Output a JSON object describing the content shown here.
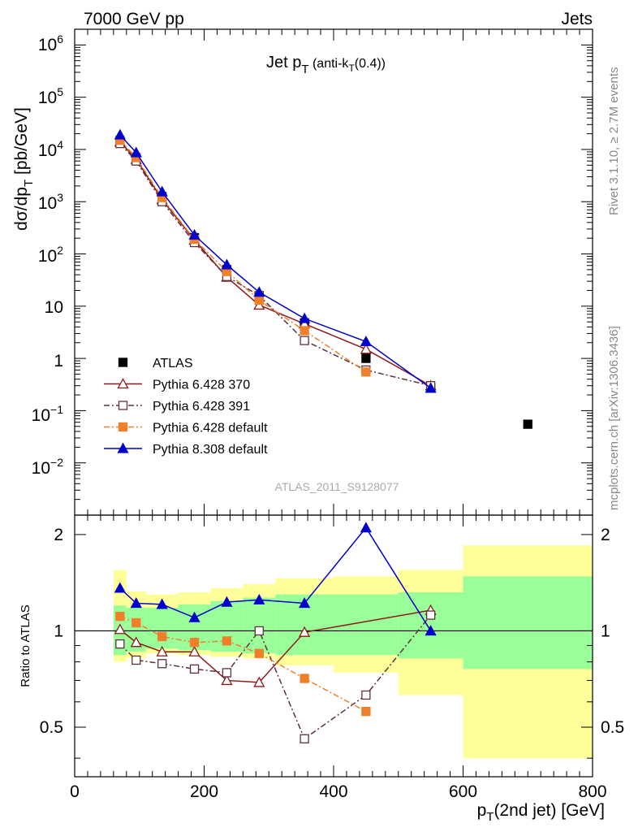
{
  "header": {
    "left": "7000 GeV pp",
    "right": "Jets"
  },
  "side_labels": {
    "rivet": "Rivet 3.1.10, ≥ 2.7M events",
    "mcplots": "mcplots.cern.ch [arXiv:1306.3436]"
  },
  "watermark": "ATLAS_2011_S9128077",
  "chart_data": [
    {
      "type": "scatter",
      "title_parts": {
        "main": "Jet p",
        "sub": "T",
        "rest": " (anti-k",
        "sub2": "T",
        "rest2": "(0.4))"
      },
      "ylabel_parts": {
        "main": "dσ/dp",
        "sub": "T",
        "rest": " [pb/GeV]"
      },
      "xlim": [
        0,
        800
      ],
      "ylim": [
        0.001,
        2000000
      ],
      "yscale": "log",
      "ytick_labels": {
        "e6": {
          "base": "10",
          "exp": "6"
        },
        "e5": {
          "base": "10",
          "exp": "5"
        },
        "e4": {
          "base": "10",
          "exp": "4"
        },
        "e3": {
          "base": "10",
          "exp": "3"
        },
        "e2": {
          "base": "10",
          "exp": "2"
        },
        "e1": "10",
        "e0": "1",
        "em1": {
          "base": "10",
          "exp": "−1"
        },
        "em2": {
          "base": "10",
          "exp": "−2"
        }
      },
      "legend_position": "lower-left",
      "series": [
        {
          "name": "ATLAS",
          "color": "#000000",
          "marker": "filled-square",
          "x": [
            70,
            95,
            135,
            185,
            235,
            285,
            355,
            450,
            550,
            700
          ],
          "y": [
            14000,
            7000,
            1250,
            205,
            50,
            15,
            4.8,
            1.0,
            0.27,
            0.055
          ]
        },
        {
          "name": "Pythia 6.428 370",
          "color": "#8b1a1a",
          "marker": "open-triangle",
          "line": "solid",
          "x": [
            70,
            95,
            135,
            185,
            235,
            285,
            355,
            450,
            550
          ],
          "y": [
            14000,
            6500,
            1100,
            185,
            36,
            10.5,
            4.6,
            1.5,
            0.3
          ]
        },
        {
          "name": "Pythia 6.428 391",
          "color": "#603040",
          "marker": "open-square",
          "line": "dashdot",
          "x": [
            70,
            95,
            135,
            185,
            235,
            285,
            355,
            450,
            550
          ],
          "y": [
            13000,
            6000,
            1000,
            165,
            37,
            16,
            2.2,
            0.6,
            0.3
          ]
        },
        {
          "name": "Pythia 6.428 default",
          "color": "#f07f2a",
          "marker": "filled-square",
          "line": "dashdot",
          "x": [
            70,
            95,
            135,
            185,
            235,
            285,
            355,
            450
          ],
          "y": [
            15000,
            7000,
            1200,
            190,
            46,
            13,
            3.4,
            0.55
          ]
        },
        {
          "name": "Pythia 8.308 default",
          "color": "#0000cc",
          "marker": "filled-triangle",
          "line": "solid",
          "x": [
            70,
            95,
            135,
            185,
            235,
            285,
            355,
            450,
            550
          ],
          "y": [
            19000,
            8700,
            1550,
            230,
            62,
            18.5,
            5.8,
            2.1,
            0.27
          ]
        }
      ]
    },
    {
      "type": "scatter",
      "ylabel": "Ratio to ATLAS",
      "xlabel_parts": {
        "main": "p",
        "sub": "T",
        "rest": "(2nd jet) [GeV]"
      },
      "xlim": [
        0,
        800
      ],
      "ylim": [
        0.35,
        2.3
      ],
      "yscale": "log",
      "xticks": [
        0,
        200,
        400,
        600,
        800
      ],
      "xtick_labels": [
        "0",
        "200",
        "400",
        "600",
        "800"
      ],
      "yticks": [
        0.5,
        1,
        2
      ],
      "ytick_labels": [
        "0.5",
        "1",
        "2"
      ],
      "reference_line": 1,
      "uncertainty_bins": {
        "edges": [
          60,
          80,
          110,
          160,
          210,
          260,
          310,
          400,
          500,
          600,
          800
        ],
        "stat_low": [
          0.84,
          0.86,
          0.88,
          0.87,
          0.86,
          0.85,
          0.84,
          0.84,
          0.82,
          0.76
        ],
        "stat_high": [
          1.2,
          1.18,
          1.18,
          1.21,
          1.24,
          1.27,
          1.3,
          1.3,
          1.32,
          1.48
        ],
        "total_low": [
          0.8,
          0.82,
          0.85,
          0.84,
          0.83,
          0.82,
          0.78,
          0.74,
          0.63,
          0.4
        ],
        "total_high": [
          1.55,
          1.33,
          1.3,
          1.32,
          1.36,
          1.4,
          1.46,
          1.48,
          1.55,
          1.85
        ]
      },
      "series": [
        {
          "name": "Pythia 6.428 370",
          "color": "#8b1a1a",
          "marker": "open-triangle",
          "line": "solid",
          "x": [
            70,
            95,
            135,
            185,
            235,
            285,
            355,
            550
          ],
          "y": [
            1.01,
            0.92,
            0.86,
            0.86,
            0.7,
            0.69,
            0.99,
            1.16
          ]
        },
        {
          "name": "Pythia 6.428 391",
          "color": "#603040",
          "marker": "open-square",
          "line": "dashdot",
          "x": [
            70,
            95,
            135,
            185,
            235,
            285,
            355,
            450,
            550
          ],
          "y": [
            0.91,
            0.81,
            0.79,
            0.76,
            0.74,
            1.0,
            0.46,
            0.63,
            1.12
          ]
        },
        {
          "name": "Pythia 6.428 default",
          "color": "#f07f2a",
          "marker": "filled-square",
          "line": "dashdot",
          "x": [
            70,
            95,
            135,
            185,
            235,
            285,
            355,
            450
          ],
          "y": [
            1.11,
            1.06,
            0.96,
            0.92,
            0.93,
            0.85,
            0.71,
            0.56
          ]
        },
        {
          "name": "Pythia 8.308 default",
          "color": "#0000cc",
          "marker": "filled-triangle",
          "line": "solid",
          "x": [
            70,
            95,
            135,
            185,
            235,
            285,
            355,
            450,
            550
          ],
          "y": [
            1.36,
            1.22,
            1.21,
            1.1,
            1.23,
            1.25,
            1.22,
            2.1,
            1.0
          ]
        }
      ]
    }
  ]
}
